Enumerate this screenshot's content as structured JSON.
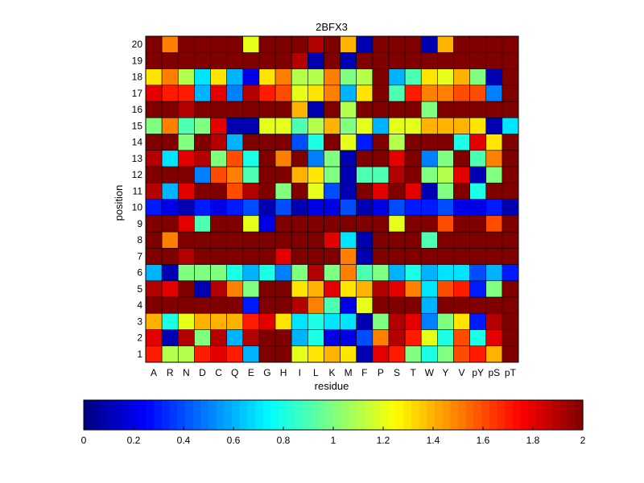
{
  "chart_data": {
    "type": "heatmap",
    "title": "2BFX3",
    "xlabel": "residue",
    "ylabel": "position",
    "x_categories": [
      "A",
      "R",
      "N",
      "D",
      "C",
      "Q",
      "E",
      "G",
      "H",
      "I",
      "L",
      "K",
      "M",
      "F",
      "P",
      "S",
      "T",
      "W",
      "Y",
      "V",
      "pY",
      "pS",
      "pT"
    ],
    "y_categories": [
      "1",
      "2",
      "3",
      "4",
      "5",
      "6",
      "7",
      "8",
      "9",
      "10",
      "11",
      "12",
      "13",
      "14",
      "15",
      "16",
      "17",
      "18",
      "19",
      "20"
    ],
    "colormap": "jet",
    "clim": [
      0,
      2
    ],
    "colorbar": {
      "orientation": "horizontal",
      "placement": "bottom",
      "ticks": [
        "0",
        "0.2",
        "0.4",
        "0.6",
        "0.8",
        "1",
        "1.2",
        "1.4",
        "1.6",
        "1.8",
        "2"
      ]
    },
    "values": [
      [
        1.7,
        1.1,
        1.1,
        1.7,
        1.8,
        1.7,
        0.6,
        2.0,
        2.0,
        1.2,
        1.3,
        1.4,
        1.3,
        0.1,
        1.8,
        1.7,
        1.0,
        0.8,
        1.0,
        1.6,
        1.7,
        1.4,
        2.0
      ],
      [
        1.8,
        0.1,
        1.9,
        1.0,
        1.9,
        0.6,
        1.9,
        2.0,
        2.0,
        0.6,
        0.8,
        0.2,
        0.2,
        0.4,
        1.5,
        1.9,
        1.7,
        1.2,
        0.8,
        1.6,
        0.8,
        1.8,
        2.0
      ],
      [
        1.4,
        0.8,
        1.2,
        1.4,
        1.4,
        1.4,
        1.7,
        1.8,
        1.3,
        0.7,
        0.8,
        0.7,
        0.7,
        0.1,
        1.0,
        1.9,
        1.8,
        0.5,
        1.0,
        1.3,
        0.3,
        1.9,
        2.0
      ],
      [
        2.0,
        2.0,
        2.0,
        2.0,
        2.0,
        2.0,
        0.3,
        2.0,
        2.0,
        1.9,
        1.5,
        0.9,
        0.2,
        1.2,
        2.0,
        2.0,
        2.0,
        0.6,
        2.0,
        2.0,
        2.0,
        2.0,
        2.0
      ],
      [
        1.9,
        1.8,
        2.0,
        0.1,
        1.9,
        1.5,
        1.0,
        2.0,
        2.0,
        1.3,
        1.4,
        1.8,
        1.3,
        1.4,
        1.9,
        1.8,
        1.5,
        0.7,
        1.6,
        1.7,
        0.3,
        1.0,
        2.0
      ],
      [
        0.6,
        0.1,
        1.0,
        1.0,
        1.0,
        0.8,
        0.6,
        0.8,
        0.5,
        1.0,
        1.9,
        1.0,
        1.5,
        0.9,
        1.0,
        0.6,
        0.8,
        0.6,
        0.7,
        0.7,
        0.4,
        0.6,
        0.3
      ],
      [
        2.0,
        2.0,
        1.9,
        2.0,
        2.0,
        2.0,
        2.0,
        2.0,
        1.8,
        2.0,
        2.0,
        2.0,
        1.5,
        0.1,
        2.0,
        2.0,
        2.0,
        2.0,
        2.0,
        2.0,
        2.0,
        2.0,
        2.0
      ],
      [
        2.0,
        1.5,
        2.0,
        2.0,
        2.0,
        2.0,
        2.0,
        2.0,
        2.0,
        2.0,
        2.0,
        1.8,
        0.7,
        0.1,
        2.0,
        2.0,
        2.0,
        0.9,
        2.0,
        2.0,
        2.0,
        2.0,
        2.0
      ],
      [
        2.0,
        2.0,
        1.8,
        0.9,
        2.0,
        2.0,
        1.2,
        0.2,
        2.0,
        2.0,
        2.0,
        2.0,
        2.0,
        2.0,
        2.0,
        1.2,
        2.0,
        2.0,
        1.6,
        2.0,
        2.0,
        1.6,
        2.0
      ],
      [
        0.3,
        0.2,
        0.1,
        0.3,
        0.2,
        0.3,
        0.4,
        0.1,
        0.4,
        0.1,
        0.2,
        0.2,
        0.4,
        0.1,
        0.2,
        0.4,
        0.3,
        0.3,
        0.4,
        0.2,
        0.2,
        0.3,
        0.1
      ],
      [
        1.9,
        0.6,
        1.8,
        2.0,
        2.0,
        1.6,
        1.9,
        2.0,
        1.0,
        2.0,
        1.2,
        0.4,
        0.1,
        2.0,
        1.8,
        2.0,
        1.8,
        0.1,
        1.0,
        2.0,
        0.8,
        2.0,
        2.0
      ],
      [
        2.0,
        2.0,
        2.0,
        0.5,
        1.6,
        1.5,
        0.9,
        2.0,
        2.0,
        1.4,
        1.3,
        1.0,
        0.1,
        0.9,
        0.9,
        1.9,
        2.0,
        1.0,
        1.1,
        1.8,
        0.1,
        1.0,
        2.0
      ],
      [
        1.9,
        0.7,
        1.8,
        1.9,
        1.0,
        1.6,
        0.8,
        2.0,
        1.5,
        2.0,
        0.5,
        1.0,
        0.1,
        2.0,
        2.0,
        1.8,
        2.0,
        0.5,
        1.0,
        2.0,
        0.9,
        1.5,
        2.0
      ],
      [
        2.0,
        2.0,
        1.0,
        2.0,
        1.9,
        0.6,
        2.0,
        2.0,
        2.0,
        0.4,
        0.8,
        2.0,
        1.2,
        0.3,
        2.0,
        1.1,
        2.0,
        2.0,
        2.0,
        0.8,
        1.8,
        1.3,
        2.0
      ],
      [
        1.0,
        1.5,
        0.9,
        1.0,
        1.8,
        0.1,
        0.1,
        1.2,
        1.2,
        0.9,
        1.1,
        1.4,
        1.0,
        1.2,
        0.6,
        1.2,
        1.2,
        1.4,
        1.4,
        1.4,
        1.3,
        0.1,
        0.7
      ],
      [
        2.0,
        2.0,
        1.9,
        2.0,
        2.0,
        2.0,
        2.0,
        2.0,
        2.0,
        1.4,
        0.1,
        2.0,
        1.1,
        2.0,
        2.0,
        2.0,
        2.0,
        1.0,
        2.0,
        2.0,
        2.0,
        2.0,
        2.0
      ],
      [
        1.8,
        1.7,
        1.7,
        0.6,
        1.8,
        0.5,
        1.9,
        1.7,
        1.6,
        1.2,
        1.3,
        1.5,
        0.6,
        1.3,
        2.0,
        0.9,
        1.7,
        1.5,
        1.5,
        1.6,
        1.6,
        0.5,
        2.0
      ],
      [
        1.3,
        1.5,
        1.1,
        0.7,
        1.3,
        0.6,
        0.2,
        1.3,
        1.5,
        1.1,
        1.1,
        1.5,
        1.0,
        1.1,
        2.0,
        0.6,
        0.9,
        1.3,
        1.2,
        1.4,
        1.0,
        0.1,
        2.0
      ],
      [
        2.0,
        2.0,
        2.0,
        2.0,
        2.0,
        2.0,
        2.0,
        2.0,
        2.0,
        1.9,
        0.1,
        2.0,
        0.1,
        2.0,
        2.0,
        2.0,
        2.0,
        2.0,
        2.0,
        2.0,
        2.0,
        2.0,
        2.0
      ],
      [
        2.0,
        1.5,
        2.0,
        2.0,
        2.0,
        2.0,
        1.2,
        2.0,
        2.0,
        2.0,
        1.9,
        2.0,
        1.4,
        0.1,
        2.0,
        2.0,
        2.0,
        0.1,
        1.4,
        2.0,
        2.0,
        2.0,
        2.0
      ]
    ]
  }
}
